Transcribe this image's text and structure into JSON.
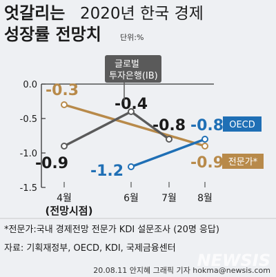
{
  "header": {
    "title_line1_part1": "엇갈리는",
    "title_line1_part2": "2020년 한국 경제",
    "title_line2": "성장률 전망치",
    "unit": "단위:%"
  },
  "footer": {
    "footnote": "*전문가:국내 경제전망 전문가 KDI 설문조사 (20명 응답)",
    "source": "자료: 기획재정부, OECD, KDI, 국제금융센터",
    "credit": "20.08.11 안지혜 그래픽 기자 hokma@newsis.com",
    "watermark": "NEWSIS"
  },
  "colors": {
    "ib": "#5a5a5a",
    "oecd": "#1f6fb5",
    "expert": "#b88a4a",
    "axis": "#333333",
    "background": "#eef0f3"
  },
  "chart_data": {
    "type": "line",
    "title": "엇갈리는 2020년 한국 경제 성장률 전망치",
    "ylabel": "단위:%",
    "ylim": [
      -1.5,
      0.0
    ],
    "yticks": [
      "0.0",
      "-0.5",
      "-1.0",
      "-1.5"
    ],
    "ytick_values": [
      0.0,
      -0.5,
      -1.0,
      -1.5
    ],
    "categories": [
      "4월",
      "6월",
      "7월",
      "8월"
    ],
    "category_index": [
      4,
      6,
      7,
      8
    ],
    "category_sublabel": "(전망시점)",
    "grid": false,
    "series": [
      {
        "name": "글로벌 투자은행(IB)",
        "name_line1": "글로벌",
        "name_line2": "투자은행(IB)",
        "color": "#5a5a5a",
        "x": [
          4,
          6,
          7
        ],
        "values": [
          -0.9,
          -0.4,
          -0.8
        ],
        "labels": [
          "-0.9",
          "-0.4",
          "-0.8"
        ]
      },
      {
        "name": "OECD",
        "color": "#1f6fb5",
        "x": [
          6,
          8
        ],
        "values": [
          -1.2,
          -0.8
        ],
        "labels": [
          "-1.2",
          "-0.8"
        ]
      },
      {
        "name": "전문가*",
        "color": "#b88a4a",
        "x": [
          4,
          8
        ],
        "values": [
          -0.3,
          -0.9
        ],
        "labels": [
          "-0.3",
          "-0.9"
        ]
      }
    ]
  }
}
